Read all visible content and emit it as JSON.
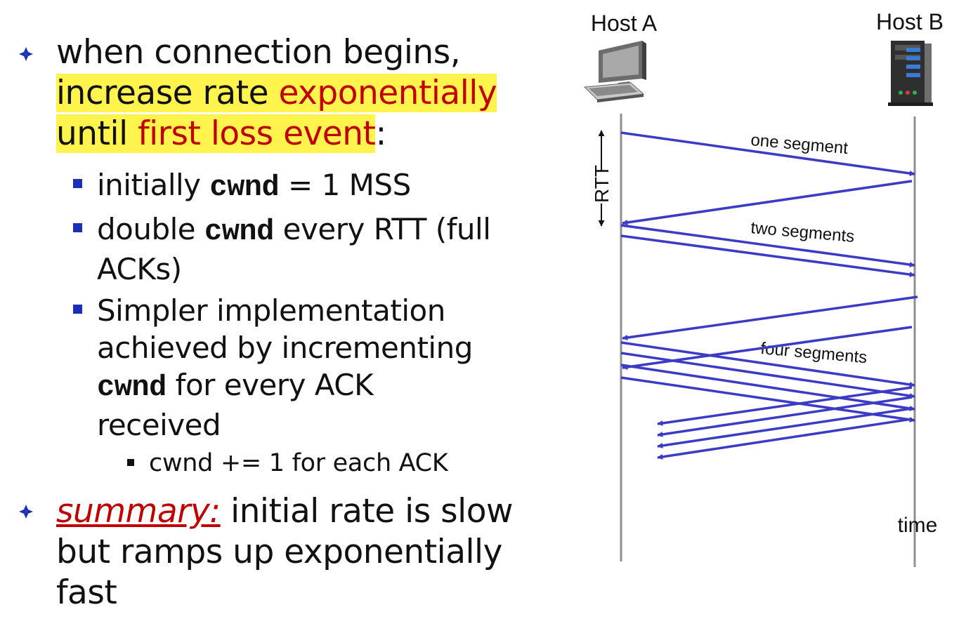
{
  "bullets": {
    "b1": {
      "line1": "when connection begins,",
      "line2_a": "increase rate ",
      "line2_b": "exponentially",
      "line3_a": "until ",
      "line3_b": "first loss event",
      "line3_c": ":"
    },
    "s1": {
      "a": "initially ",
      "code": "cwnd",
      "b": " = 1 MSS"
    },
    "s2": {
      "a": "double ",
      "code": "cwnd",
      "b": " every RTT (full ACKs)"
    },
    "s3": {
      "a": "Simpler implementation achieved by incrementing ",
      "code": "cwnd",
      "b": " for every ACK received"
    },
    "ss1": "cwnd += 1 for each ACK",
    "b2": {
      "summary": "summary:",
      "rest": " initial rate is slow but ramps up exponentially fast"
    }
  },
  "diagram": {
    "host_a": "Host A",
    "host_b": "Host B",
    "rtt": "RTT",
    "label_one": "one segment",
    "label_two": "two segments",
    "label_four": "four segments",
    "time": "time",
    "arrow_color": "#3b3bc6",
    "line_color": "#8f8f8f"
  }
}
